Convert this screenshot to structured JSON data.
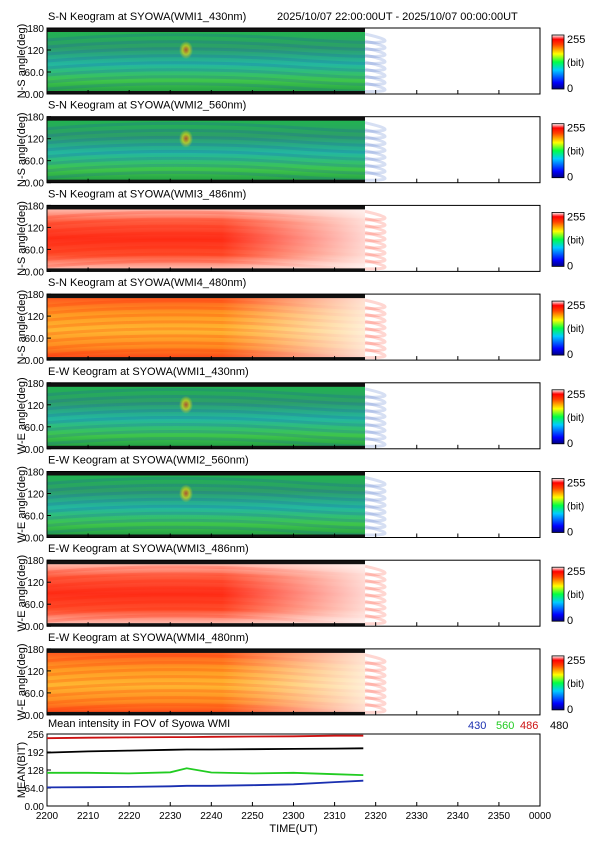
{
  "header_range": "2025/10/07 22:00:00UT - 2025/10/07 00:00:00UT",
  "panels": [
    {
      "title": "S-N Keogram at SYOWA(WMI1_430nm)",
      "ylabel": "N-S angle(deg)",
      "palette": "green"
    },
    {
      "title": "S-N Keogram at SYOWA(WMI2_560nm)",
      "ylabel": "N-S angle(deg)",
      "palette": "green"
    },
    {
      "title": "S-N Keogram at SYOWA(WMI3_486nm)",
      "ylabel": "N-S angle(deg)",
      "palette": "red"
    },
    {
      "title": "S-N Keogram at SYOWA(WMI4_480nm)",
      "ylabel": "N-S angle(deg)",
      "palette": "redorange"
    },
    {
      "title": "E-W Keogram at SYOWA(WMI1_430nm)",
      "ylabel": "W-E angle(deg)",
      "palette": "green"
    },
    {
      "title": "E-W Keogram at SYOWA(WMI2_560nm)",
      "ylabel": "W-E angle(deg)",
      "palette": "green"
    },
    {
      "title": "E-W Keogram at SYOWA(WMI3_486nm)",
      "ylabel": "W-E angle(deg)",
      "palette": "red"
    },
    {
      "title": "E-W Keogram at SYOWA(WMI4_480nm)",
      "ylabel": "W-E angle(deg)",
      "palette": "redorange"
    }
  ],
  "keogram_yticks": [
    "0.00",
    "60.0",
    "120",
    "180"
  ],
  "colorbar": {
    "max_label": "255",
    "unit_label": "(bit)",
    "min_label": "0"
  },
  "mean_panel": {
    "title": "Mean intensity in FOV of Syowa WMI",
    "ylabel": "MEAN(BIT)",
    "yticks": [
      "0.00",
      "64.0",
      "128",
      "192",
      "256"
    ],
    "legend": [
      {
        "label": "430",
        "color": "#1a2fb0"
      },
      {
        "label": "560",
        "color": "#22cc22"
      },
      {
        "label": "486",
        "color": "#cc1111"
      },
      {
        "label": "480",
        "color": "#000000"
      }
    ]
  },
  "xaxis": {
    "label": "TIME(UT)",
    "ticks": [
      "2200",
      "2210",
      "2220",
      "2230",
      "2240",
      "2250",
      "2300",
      "2310",
      "2320",
      "2330",
      "2340",
      "2350",
      "0000"
    ]
  },
  "chart_data": {
    "type": "line",
    "title": "Mean intensity in FOV of Syowa WMI",
    "xlabel": "TIME(UT)",
    "ylabel": "MEAN(BIT)",
    "ylim": [
      0,
      256
    ],
    "x": [
      "2200",
      "2210",
      "2220",
      "2230",
      "2234",
      "2240",
      "2250",
      "2300",
      "2310",
      "2317"
    ],
    "series": [
      {
        "name": "486",
        "values": [
          241,
          243,
          244,
          245,
          245,
          246,
          247,
          248,
          250,
          250
        ]
      },
      {
        "name": "480",
        "values": [
          190,
          194,
          197,
          200,
          201,
          201,
          202,
          203,
          204,
          205
        ]
      },
      {
        "name": "560",
        "values": [
          118,
          118,
          116,
          120,
          134,
          119,
          116,
          118,
          113,
          110
        ]
      },
      {
        "name": "430",
        "values": [
          66,
          67,
          68,
          70,
          72,
          72,
          74,
          77,
          85,
          90
        ]
      }
    ]
  }
}
